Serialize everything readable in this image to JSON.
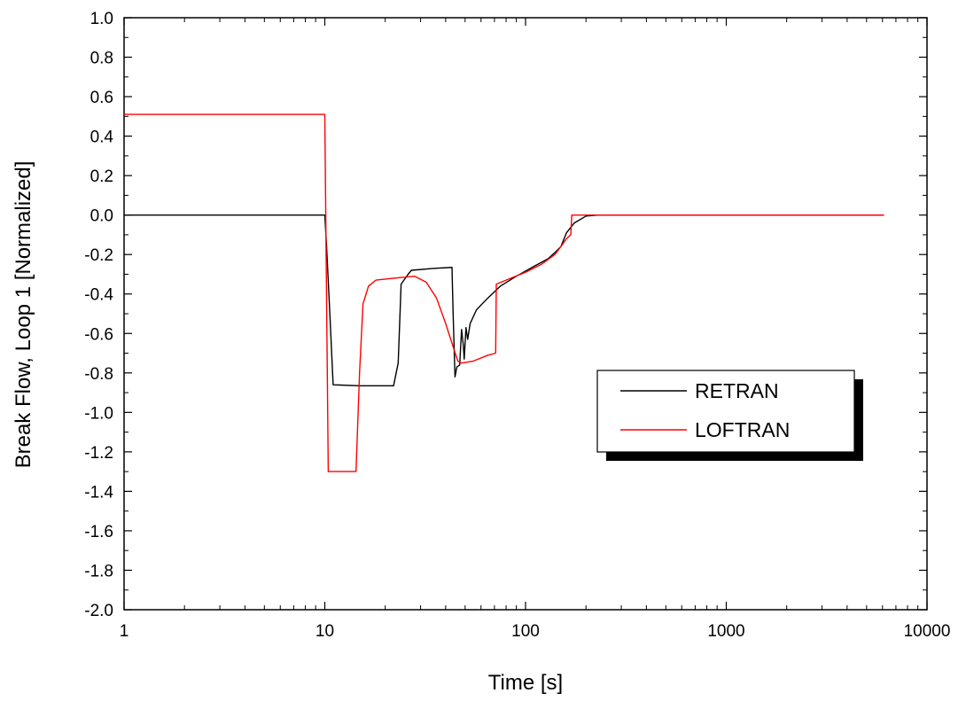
{
  "chart_data": {
    "type": "line",
    "title": "",
    "xlabel": "Time [s]",
    "ylabel": "Break Flow, Loop 1 [Normalized]",
    "xscale": "log",
    "xlim": [
      1,
      10000
    ],
    "ylim": [
      -2.0,
      1.0
    ],
    "xticks": [
      1,
      10,
      100,
      1000,
      10000
    ],
    "xtick_labels": [
      "1",
      "10",
      "100",
      "1000",
      "10000"
    ],
    "yticks": [
      1.0,
      0.8,
      0.6,
      0.4,
      0.2,
      0.0,
      -0.2,
      -0.4,
      -0.6,
      -0.8,
      -1.0,
      -1.2,
      -1.4,
      -1.6,
      -1.8,
      -2.0
    ],
    "ytick_labels": [
      "1.0",
      "0.8",
      "0.6",
      "0.4",
      "0.2",
      "0.0",
      "-0.2",
      "-0.4",
      "-0.6",
      "-0.8",
      "-1.0",
      "-1.2",
      "-1.4",
      "-1.6",
      "-1.8",
      "-2.0"
    ],
    "grid": false,
    "legend_position": "right",
    "series": [
      {
        "name": "RETRAN",
        "color": "#000000",
        "points": [
          [
            1,
            0.0
          ],
          [
            10.0,
            0.0
          ],
          [
            10.2,
            -0.15
          ],
          [
            10.6,
            -0.5
          ],
          [
            11.0,
            -0.86
          ],
          [
            15.0,
            -0.865
          ],
          [
            20.0,
            -0.865
          ],
          [
            22.0,
            -0.865
          ],
          [
            23.2,
            -0.75
          ],
          [
            24.0,
            -0.35
          ],
          [
            26.0,
            -0.3
          ],
          [
            27.0,
            -0.28
          ],
          [
            35.0,
            -0.27
          ],
          [
            43.0,
            -0.265
          ],
          [
            43.6,
            -0.5
          ],
          [
            44.5,
            -0.82
          ],
          [
            45.5,
            -0.77
          ],
          [
            47.0,
            -0.76
          ],
          [
            48.0,
            -0.58
          ],
          [
            49.0,
            -0.66
          ],
          [
            49.5,
            -0.73
          ],
          [
            50.5,
            -0.57
          ],
          [
            51.5,
            -0.63
          ],
          [
            53.0,
            -0.55
          ],
          [
            57.0,
            -0.48
          ],
          [
            65.0,
            -0.42
          ],
          [
            75.0,
            -0.36
          ],
          [
            90.0,
            -0.31
          ],
          [
            110.0,
            -0.26
          ],
          [
            130.0,
            -0.22
          ],
          [
            140.0,
            -0.19
          ],
          [
            150.0,
            -0.16
          ],
          [
            160.0,
            -0.09
          ],
          [
            175.0,
            -0.04
          ],
          [
            200.0,
            -0.005
          ],
          [
            230.0,
            0.0
          ],
          [
            6100.0,
            0.0
          ]
        ]
      },
      {
        "name": "LOFTRAN",
        "color": "#ff0000",
        "points": [
          [
            1,
            0.51
          ],
          [
            10.0,
            0.51
          ],
          [
            10.15,
            -0.2
          ],
          [
            10.4,
            -1.3
          ],
          [
            14.3,
            -1.3
          ],
          [
            14.9,
            -0.8
          ],
          [
            15.5,
            -0.45
          ],
          [
            16.5,
            -0.36
          ],
          [
            18.0,
            -0.33
          ],
          [
            22.0,
            -0.32
          ],
          [
            28.0,
            -0.31
          ],
          [
            32.0,
            -0.34
          ],
          [
            36.0,
            -0.42
          ],
          [
            40.0,
            -0.55
          ],
          [
            44.0,
            -0.68
          ],
          [
            46.0,
            -0.74
          ],
          [
            48.0,
            -0.75
          ],
          [
            55.0,
            -0.74
          ],
          [
            65.0,
            -0.71
          ],
          [
            71.0,
            -0.7
          ],
          [
            71.5,
            -0.35
          ],
          [
            80.0,
            -0.33
          ],
          [
            100.0,
            -0.29
          ],
          [
            120.0,
            -0.25
          ],
          [
            140.0,
            -0.2
          ],
          [
            150.0,
            -0.16
          ],
          [
            160.0,
            -0.12
          ],
          [
            168.0,
            -0.1
          ],
          [
            170.0,
            0.0
          ],
          [
            6100.0,
            0.0
          ]
        ]
      }
    ]
  }
}
